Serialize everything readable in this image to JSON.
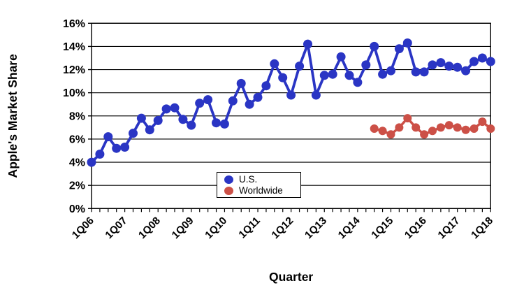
{
  "chart_data": {
    "type": "line",
    "title": "",
    "xlabel": "Quarter",
    "ylabel": "Apple's Market Share",
    "ylim": [
      0,
      16
    ],
    "ytick_step": 2,
    "ytick_labels": [
      "0%",
      "2%",
      "4%",
      "6%",
      "8%",
      "10%",
      "12%",
      "14%",
      "16%"
    ],
    "grid": true,
    "legend_position": "inside-bottom-center",
    "x_tick_every": 4,
    "x_tick_labels": [
      "1Q06",
      "1Q07",
      "1Q08",
      "1Q09",
      "1Q10",
      "1Q11",
      "1Q12",
      "1Q13",
      "1Q14",
      "1Q15",
      "1Q16",
      "1Q17",
      "1Q18"
    ],
    "categories": [
      "1Q06",
      "2Q06",
      "3Q06",
      "4Q06",
      "1Q07",
      "2Q07",
      "3Q07",
      "4Q07",
      "1Q08",
      "2Q08",
      "3Q08",
      "4Q08",
      "1Q09",
      "2Q09",
      "3Q09",
      "4Q09",
      "1Q10",
      "2Q10",
      "3Q10",
      "4Q10",
      "1Q11",
      "2Q11",
      "3Q11",
      "4Q11",
      "1Q12",
      "2Q12",
      "3Q12",
      "4Q12",
      "1Q13",
      "2Q13",
      "3Q13",
      "4Q13",
      "1Q14",
      "2Q14",
      "3Q14",
      "4Q14",
      "1Q15",
      "2Q15",
      "3Q15",
      "4Q15",
      "1Q16",
      "2Q16",
      "3Q16",
      "4Q16",
      "1Q17",
      "2Q17",
      "3Q17",
      "4Q17",
      "1Q18"
    ],
    "series": [
      {
        "name": "U.S.",
        "color": "#2A35C4",
        "marker_radius": 6.5,
        "line_width": 3.8,
        "values": [
          4.0,
          4.7,
          6.2,
          5.2,
          5.3,
          6.5,
          7.8,
          6.8,
          7.6,
          8.6,
          8.7,
          7.7,
          7.2,
          9.1,
          9.4,
          7.4,
          7.3,
          9.3,
          10.8,
          9.0,
          9.6,
          10.6,
          12.5,
          11.3,
          9.8,
          12.3,
          14.2,
          9.8,
          11.5,
          11.6,
          13.1,
          11.5,
          10.9,
          12.4,
          14.0,
          11.6,
          11.9,
          13.8,
          14.3,
          11.8,
          11.8,
          12.4,
          12.6,
          12.3,
          12.2,
          11.9,
          12.7,
          13.0,
          12.7
        ]
      },
      {
        "name": "Worldwide",
        "color": "#CC5047",
        "marker_radius": 6.0,
        "line_width": 3.5,
        "values": [
          null,
          null,
          null,
          null,
          null,
          null,
          null,
          null,
          null,
          null,
          null,
          null,
          null,
          null,
          null,
          null,
          null,
          null,
          null,
          null,
          null,
          null,
          null,
          null,
          null,
          null,
          null,
          null,
          null,
          null,
          null,
          null,
          null,
          null,
          6.9,
          6.7,
          6.4,
          7.0,
          7.8,
          7.0,
          6.4,
          6.7,
          7.0,
          7.2,
          7.0,
          6.8,
          6.9,
          7.5,
          6.9
        ]
      }
    ]
  },
  "axes": {
    "y_label": "Apple's Market Share",
    "x_label": "Quarter"
  },
  "legend": {
    "us_label": "U.S.",
    "worldwide_label": "Worldwide"
  }
}
